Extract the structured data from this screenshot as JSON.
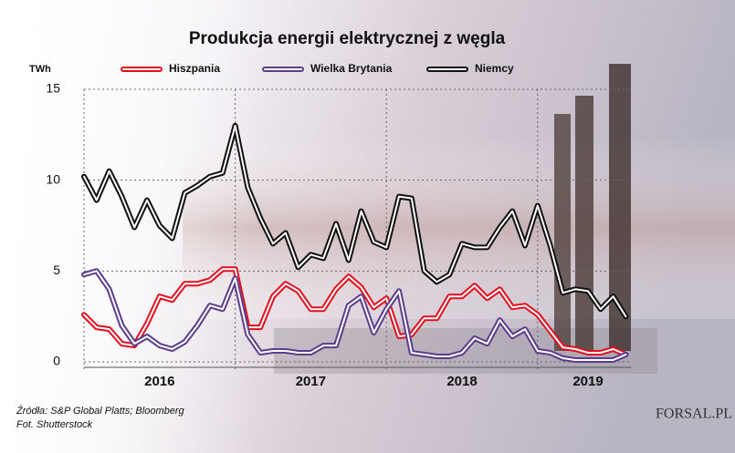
{
  "chart_data": {
    "type": "line",
    "title": "Produkcja energii elektrycznej z węgla",
    "y_label": "TWh",
    "categories": [
      "2016",
      null,
      null,
      null,
      null,
      null,
      null,
      null,
      null,
      null,
      null,
      null,
      "2017",
      null,
      null,
      null,
      null,
      null,
      null,
      null,
      null,
      null,
      null,
      null,
      "2018",
      null,
      null,
      null,
      null,
      null,
      null,
      null,
      null,
      null,
      null,
      null,
      "2019",
      null,
      null,
      null,
      null,
      null,
      null,
      null
    ],
    "ylim": [
      0,
      15
    ],
    "yticks": [
      0,
      5,
      10,
      15
    ],
    "grid": true,
    "series": [
      {
        "name": "Hiszpania",
        "color": "#e0101e",
        "values": [
          2.6,
          1.9,
          1.8,
          1.0,
          0.9,
          2.1,
          3.6,
          3.4,
          4.3,
          4.3,
          4.5,
          5.1,
          5.1,
          1.9,
          1.9,
          3.6,
          4.3,
          3.9,
          2.9,
          2.9,
          4.0,
          4.7,
          4.1,
          3.0,
          3.5,
          1.4,
          1.5,
          2.4,
          2.4,
          3.6,
          3.6,
          4.2,
          3.5,
          4.0,
          3.0,
          3.1,
          2.6,
          1.7,
          0.8,
          0.7,
          0.5,
          0.5,
          0.7,
          0.4
        ]
      },
      {
        "name": "Wielka Brytania",
        "color": "#5c3c8c",
        "values": [
          4.8,
          5.0,
          4.0,
          2.0,
          1.0,
          1.4,
          0.9,
          0.7,
          1.1,
          2.0,
          3.1,
          2.9,
          4.6,
          1.5,
          0.5,
          0.6,
          0.6,
          0.5,
          0.5,
          0.9,
          0.9,
          3.1,
          3.6,
          1.6,
          2.9,
          3.9,
          0.5,
          0.4,
          0.3,
          0.3,
          0.5,
          1.3,
          1.0,
          2.3,
          1.4,
          1.8,
          0.6,
          0.5,
          0.2,
          0.1,
          0.1,
          0.1,
          0.1,
          0.4
        ]
      },
      {
        "name": "Niemcy",
        "color": "#111111",
        "values": [
          10.2,
          8.9,
          10.5,
          9.1,
          7.4,
          8.9,
          7.5,
          6.8,
          9.3,
          9.7,
          10.2,
          10.4,
          13.0,
          9.6,
          7.9,
          6.5,
          7.1,
          5.2,
          5.9,
          5.7,
          7.6,
          5.6,
          8.3,
          6.6,
          6.3,
          9.1,
          9.0,
          5.0,
          4.4,
          4.8,
          6.5,
          6.3,
          6.3,
          7.4,
          8.3,
          6.4,
          8.6,
          6.4,
          3.8,
          4.0,
          3.9,
          2.9,
          3.6,
          2.5
        ]
      }
    ]
  },
  "source": "Źródła: S&P Global Platts; Bloomberg",
  "photo": "Fot. Shutterstock",
  "logo": "FORSAL.PL"
}
